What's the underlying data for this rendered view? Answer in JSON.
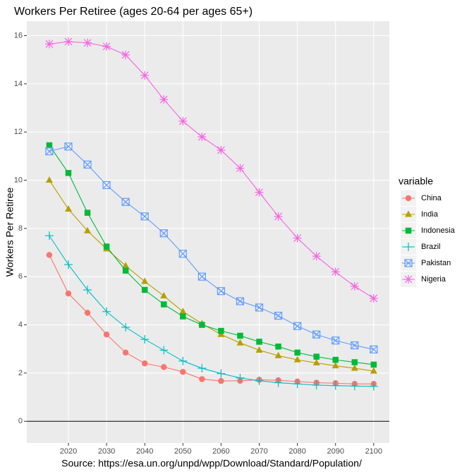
{
  "chart_data": {
    "type": "line",
    "title": "Workers Per Retiree (ages 20-64 per ages 65+)",
    "y_label": "Workers Per Retiree",
    "x_label": "Source: https://esa.un.org/unpd/wpp/Download/Standard/Population/",
    "legend_title": "variable",
    "legend_position": "right",
    "grid": true,
    "x": [
      2015,
      2020,
      2025,
      2030,
      2035,
      2040,
      2045,
      2050,
      2055,
      2060,
      2065,
      2070,
      2075,
      2080,
      2085,
      2090,
      2095,
      2100
    ],
    "xlim": [
      2009.1,
      2104.1
    ],
    "xticks": [
      2020,
      2030,
      2040,
      2050,
      2060,
      2070,
      2080,
      2090,
      2100
    ],
    "ylim": [
      -0.9,
      16.6
    ],
    "yticks": [
      0,
      2,
      4,
      6,
      8,
      10,
      12,
      14,
      16
    ],
    "series": [
      {
        "name": "China",
        "color": "#F8766D",
        "marker": "circle",
        "values": [
          6.9,
          5.3,
          4.5,
          3.6,
          2.85,
          2.4,
          2.25,
          2.05,
          1.75,
          1.67,
          1.68,
          1.72,
          1.7,
          1.65,
          1.6,
          1.58,
          1.55,
          1.55
        ]
      },
      {
        "name": "India",
        "color": "#B79F00",
        "marker": "triangle",
        "values": [
          10.0,
          8.8,
          7.9,
          7.15,
          6.45,
          5.8,
          5.2,
          4.55,
          4.05,
          3.6,
          3.25,
          2.95,
          2.72,
          2.55,
          2.42,
          2.3,
          2.2,
          2.08
        ]
      },
      {
        "name": "Indonesia",
        "color": "#00BA38",
        "marker": "square",
        "values": [
          11.45,
          10.3,
          8.65,
          7.25,
          6.25,
          5.45,
          4.85,
          4.35,
          4.0,
          3.75,
          3.55,
          3.3,
          3.1,
          2.85,
          2.68,
          2.55,
          2.45,
          2.35
        ]
      },
      {
        "name": "Brazil",
        "color": "#00BFC4",
        "marker": "plus",
        "values": [
          7.7,
          6.5,
          5.45,
          4.55,
          3.9,
          3.4,
          2.95,
          2.5,
          2.2,
          1.98,
          1.8,
          1.68,
          1.6,
          1.55,
          1.5,
          1.48,
          1.46,
          1.45
        ]
      },
      {
        "name": "Pakistan",
        "color": "#619CFF",
        "marker": "square-x",
        "values": [
          11.2,
          11.4,
          10.65,
          9.8,
          9.1,
          8.5,
          7.8,
          6.95,
          6.0,
          5.4,
          4.98,
          4.72,
          4.38,
          3.95,
          3.6,
          3.35,
          3.15,
          2.98
        ]
      },
      {
        "name": "Nigeria",
        "color": "#F564E3",
        "marker": "asterisk",
        "values": [
          15.65,
          15.75,
          15.7,
          15.55,
          15.2,
          14.35,
          13.35,
          12.45,
          11.8,
          11.25,
          10.5,
          9.5,
          8.5,
          7.6,
          6.85,
          6.2,
          5.6,
          5.1
        ]
      }
    ]
  }
}
